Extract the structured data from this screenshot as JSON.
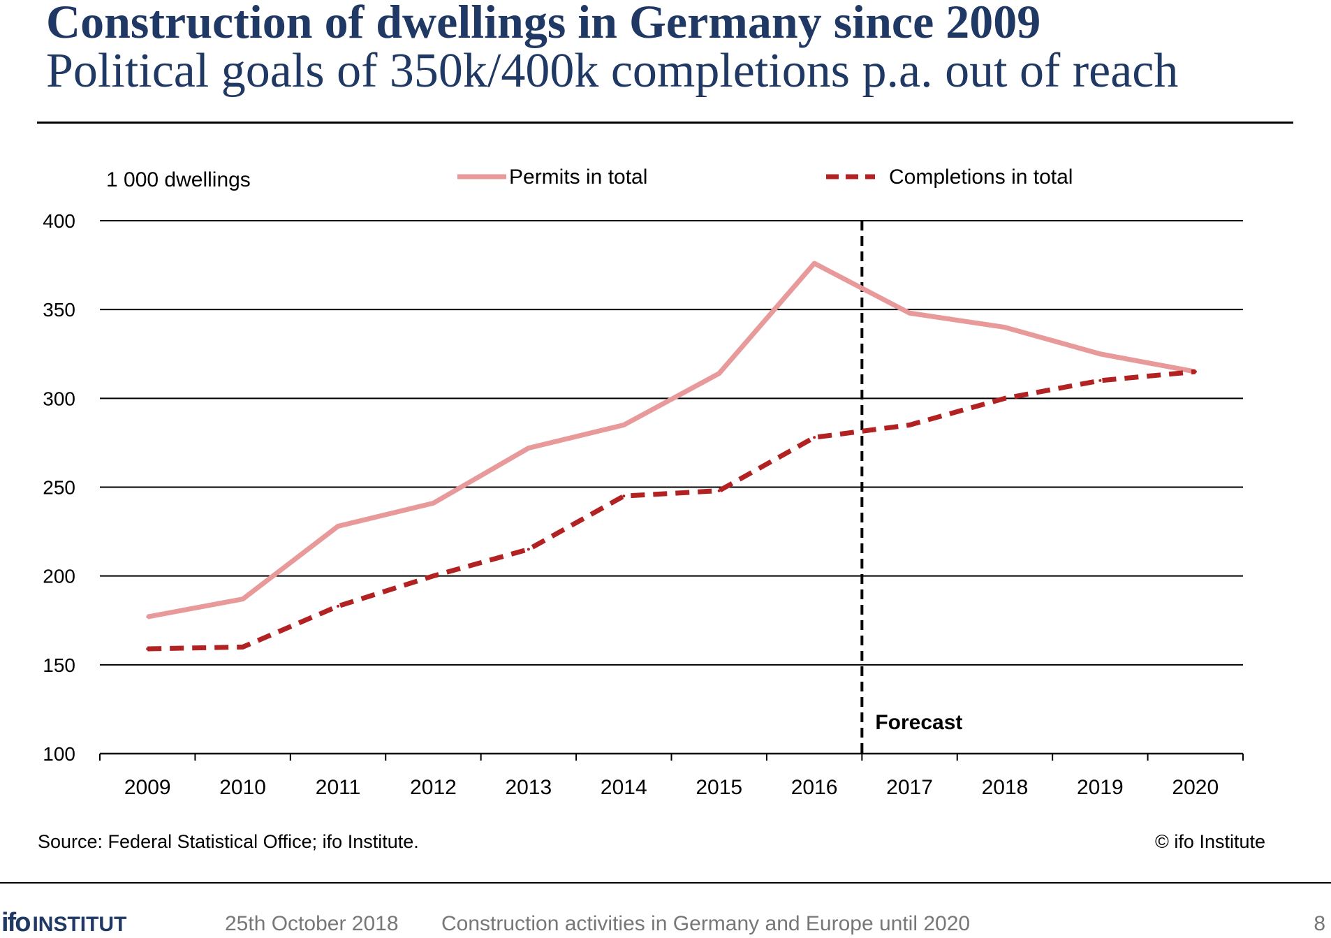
{
  "header": {
    "title": "Construction of  dwellings in Germany since 2009",
    "subtitle": "Political goals of  350k/400k completions p.a. out of  reach"
  },
  "chart_data": {
    "type": "line",
    "unit_label": "1 000 dwellings",
    "ylim": [
      100,
      400
    ],
    "yticks": [
      100,
      150,
      200,
      250,
      300,
      350,
      400
    ],
    "categories": [
      "2009",
      "2010",
      "2011",
      "2012",
      "2013",
      "2014",
      "2015",
      "2016",
      "2017",
      "2018",
      "2019",
      "2020"
    ],
    "series": [
      {
        "name": "Permits in total",
        "color": "#e8999a",
        "style": "solid",
        "values": [
          177,
          187,
          228,
          241,
          272,
          285,
          314,
          376,
          348,
          340,
          325,
          315
        ]
      },
      {
        "name": "Completions in total",
        "color": "#b22222",
        "style": "dashed",
        "values": [
          159,
          160,
          183,
          200,
          215,
          245,
          248,
          278,
          285,
          300,
          310,
          315
        ]
      }
    ],
    "forecast_label": "Forecast",
    "forecast_from": "2017",
    "grid": true,
    "legend_position": "top"
  },
  "footer": {
    "source": "Source: Federal Statistical Office; ifo Institute.",
    "copyright": "© ifo Institute",
    "logo_ifo": "ifo",
    "logo_institut": "INSTITUT",
    "date": "25th October 2018",
    "description": "Construction activities in Germany and Europe until 2020",
    "page": "8"
  }
}
